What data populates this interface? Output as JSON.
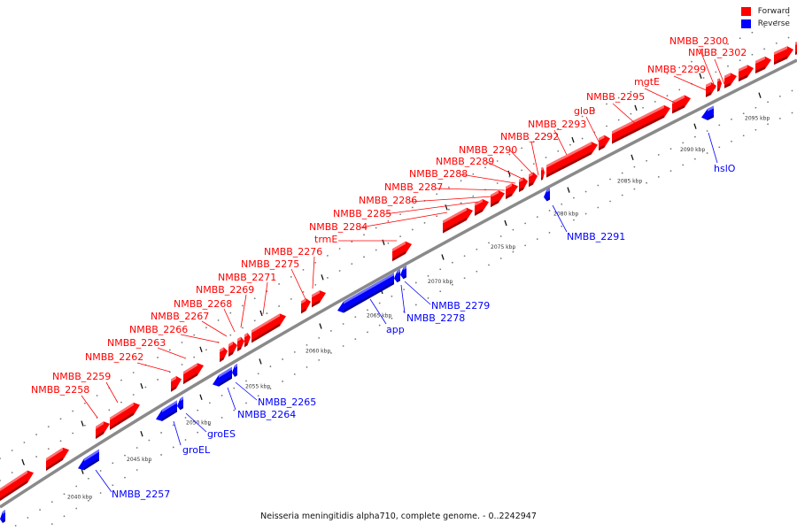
{
  "legend": {
    "forward": "Forward",
    "reverse": "Reverse"
  },
  "colors": {
    "forward": "#ff0000",
    "reverse": "#0000ff"
  },
  "caption": "Neisseria meningitidis alpha710, complete genome. - 0..2242947",
  "ticks": [
    "2040 kbp",
    "2045 kbp",
    "2050 kbp",
    "2055 kbp",
    "2060 kbp",
    "2065 kbp",
    "2070 kbp",
    "2075 kbp",
    "2080 kbp",
    "2085 kbp",
    "2090 kbp",
    "2095 kbp"
  ],
  "forward_labels": [
    "NMBB_2258",
    "NMBB_2259",
    "NMBB_2262",
    "NMBB_2263",
    "NMBB_2266",
    "NMBB_2267",
    "NMBB_2268",
    "NMBB_2269",
    "NMBB_2271",
    "NMBB_2275",
    "NMBB_2276",
    "trmE",
    "NMBB_2284",
    "NMBB_2285",
    "NMBB_2286",
    "NMBB_2287",
    "NMBB_2288",
    "NMBB_2289",
    "NMBB_2290",
    "NMBB_2292",
    "NMBB_2293",
    "gloB",
    "NMBB_2295",
    "mgtE",
    "NMBB_2299",
    "NMBB_2300",
    "NMBB_2302"
  ],
  "reverse_labels": [
    "NMBB_2257",
    "groEL",
    "groES",
    "NMBB_2264",
    "NMBB_2265",
    "app",
    "NMBB_2278",
    "NMBB_2279",
    "NMBB_2291",
    "hslO"
  ]
}
